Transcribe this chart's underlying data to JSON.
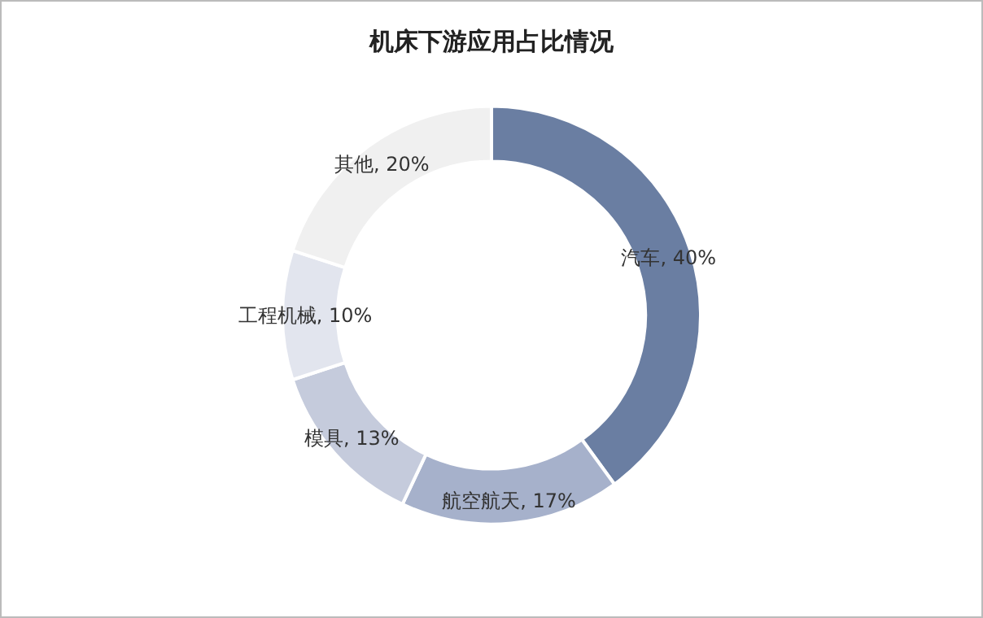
{
  "chart_data": {
    "type": "donut",
    "title": "机床下游应用占比情况",
    "categories": [
      "汽车",
      "航空航天",
      "模具",
      "工程机械",
      "其他"
    ],
    "values": [
      40,
      17,
      13,
      10,
      20
    ],
    "value_labels": [
      "40%",
      "17%",
      "13%",
      "10%",
      "20%"
    ],
    "colors": [
      "#6a7ea2",
      "#a6b1cb",
      "#c5cbdc",
      "#e2e5ee",
      "#f0f0f0"
    ],
    "legend": false
  }
}
